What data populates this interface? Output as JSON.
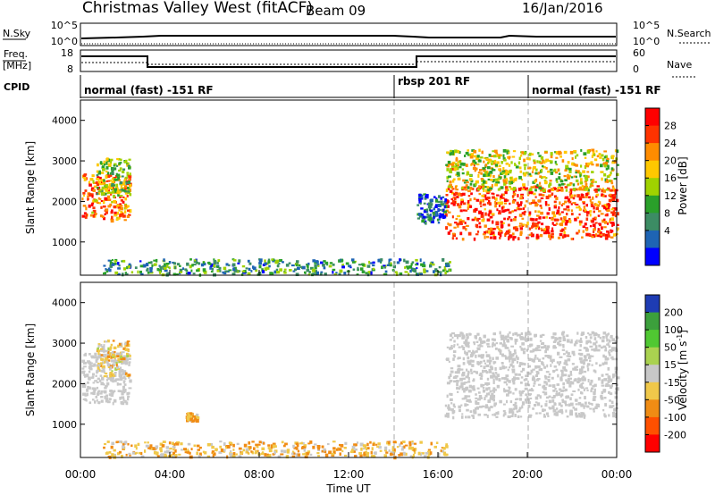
{
  "header": {
    "station": "Christmas Valley West (fitACF)",
    "beam": "Beam 09",
    "date": "16/Jan/2016"
  },
  "nsky_panel": {
    "left_label": "N.Sky",
    "right_label": "N.Search",
    "ticks_left": [
      "10^5",
      "10^0"
    ],
    "ticks_right": [
      "10^5",
      "10^0"
    ]
  },
  "freq_panel": {
    "left_label": "Freq.",
    "left_unit": "[MHz]",
    "right_label": "Nave",
    "ticks_left": [
      "18",
      "8"
    ],
    "ticks_right": [
      "60",
      "0"
    ]
  },
  "cpid_panel": {
    "label": "CPID",
    "segments": [
      {
        "text": "normal (fast) -151 RF",
        "start_h": 0
      },
      {
        "text": "rbsp 201 RF",
        "start_h": 14
      },
      {
        "text": "normal (fast) -151 RF",
        "start_h": 20
      }
    ]
  },
  "time_axis": {
    "label": "Time UT",
    "ticks": [
      "00:00",
      "04:00",
      "08:00",
      "12:00",
      "16:00",
      "20:00",
      "00:00"
    ]
  },
  "power_colorbar": {
    "label": "Power [dB]",
    "ticks": [
      "28",
      "24",
      "20",
      "16",
      "12",
      "8",
      "4"
    ],
    "colors": [
      "#ff0000",
      "#ff3300",
      "#ff8c00",
      "#ffc800",
      "#a0d200",
      "#2aa02a",
      "#3c8c64",
      "#1e64b4",
      "#0000ff"
    ]
  },
  "velocity_colorbar": {
    "label_main": "Velocity [m s",
    "label_sup": "-1",
    "label_end": "]",
    "ticks": [
      "200",
      "100",
      "50",
      "15",
      "-15",
      "-50",
      "-100",
      "-200"
    ],
    "colors": [
      "#1e3cb4",
      "#3ca03c",
      "#50c832",
      "#aad250",
      "#c8c8c8",
      "#f0c84a",
      "#f08c14",
      "#ff5000",
      "#ff0000"
    ]
  },
  "chart_data": [
    {
      "type": "heatmap",
      "title": "Power",
      "ylabel": "Slant Range [km]",
      "xlabel": "",
      "y_ticks": [
        "1000",
        "2000",
        "3000",
        "4000"
      ],
      "x_range_hours": [
        0,
        24
      ],
      "y_range_km": [
        180,
        4500
      ],
      "blobs": [
        {
          "t0": 0.05,
          "t1": 2.2,
          "r0": 1550,
          "r1": 2700,
          "value_db": 24
        },
        {
          "t0": 0.7,
          "t1": 2.2,
          "r0": 2200,
          "r1": 3100,
          "value_db": 14
        },
        {
          "t0": 16.3,
          "t1": 24,
          "r0": 1100,
          "r1": 2400,
          "value_db": 27
        },
        {
          "t0": 16.3,
          "t1": 24,
          "r0": 2300,
          "r1": 3300,
          "value_db": 18
        },
        {
          "t0": 1.0,
          "t1": 16.5,
          "r0": 220,
          "r1": 600,
          "value_db": 10
        },
        {
          "t0": 15.0,
          "t1": 16.3,
          "r0": 1500,
          "r1": 2200,
          "value_db": 6
        }
      ]
    },
    {
      "type": "heatmap",
      "title": "Velocity",
      "ylabel": "Slant Range [km]",
      "xlabel": "Time UT",
      "y_ticks": [
        "1000",
        "2000",
        "3000",
        "4000"
      ],
      "x_range_hours": [
        0,
        24
      ],
      "y_range_km": [
        180,
        4500
      ],
      "blobs": [
        {
          "t0": 0.05,
          "t1": 2.2,
          "r0": 1550,
          "r1": 2800,
          "value_ms": 0
        },
        {
          "t0": 0.7,
          "t1": 2.2,
          "r0": 2200,
          "r1": 3100,
          "value_ms": -20
        },
        {
          "t0": 16.3,
          "t1": 24,
          "r0": 1200,
          "r1": 3300,
          "value_ms": 0
        },
        {
          "t0": 1.0,
          "t1": 16.5,
          "r0": 220,
          "r1": 600,
          "value_ms": -40
        },
        {
          "t0": 4.7,
          "t1": 5.2,
          "r0": 1100,
          "r1": 1300,
          "value_ms": -40
        }
      ]
    }
  ]
}
